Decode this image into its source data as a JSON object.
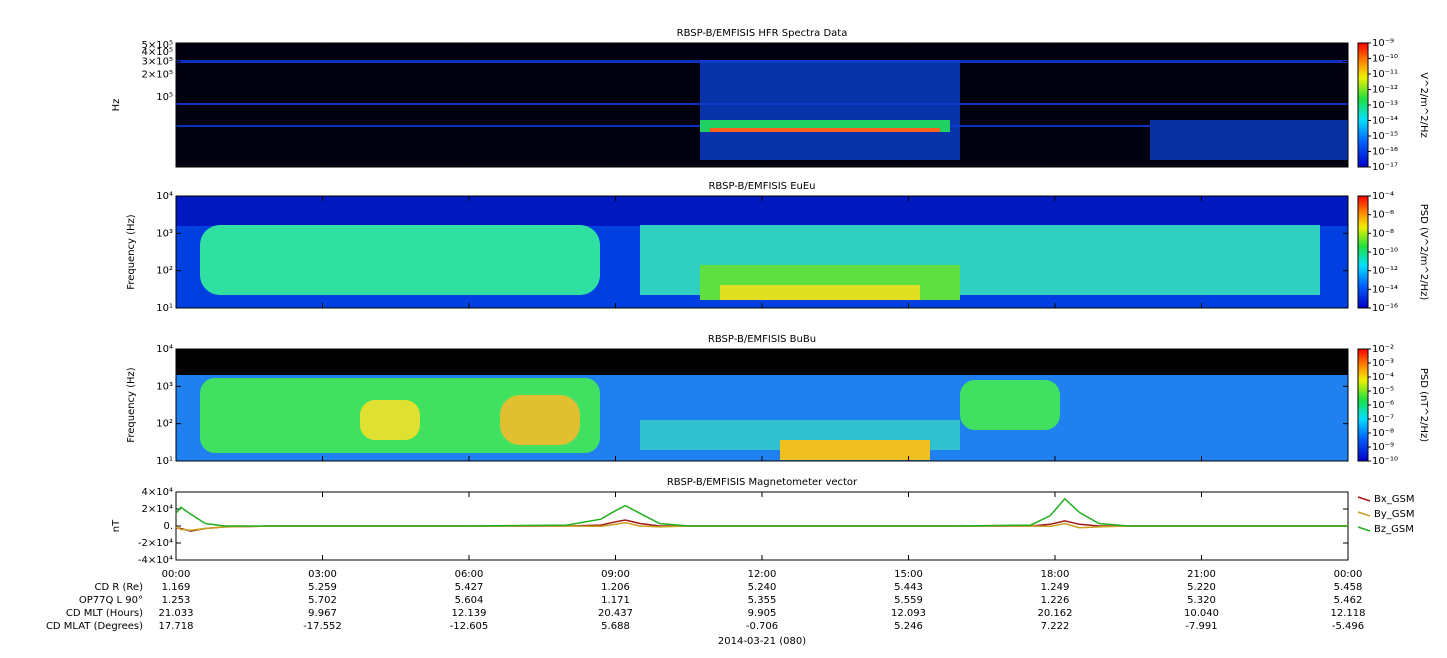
{
  "chart_data": [
    {
      "type": "spectrogram",
      "title": "RBSP-B/EMFISIS  HFR Spectra Data",
      "y_label": "Hz",
      "log_y": true,
      "ylim": [
        11500,
        530000
      ],
      "yticks": [
        {
          "value": 500000,
          "label": "5×10⁵"
        },
        {
          "value": 400000,
          "label": "4×10⁵"
        },
        {
          "value": 300000,
          "label": "3×10⁵"
        },
        {
          "value": 200000,
          "label": "2×10⁵"
        },
        {
          "value": 100000,
          "label": "10⁵"
        }
      ],
      "colorbar": {
        "label": "V^2/m^2/Hz",
        "clim": [
          -17,
          -9
        ],
        "ticks": [
          {
            "value": -9,
            "label": "10⁻⁹"
          },
          {
            "value": -10,
            "label": "10⁻¹⁰"
          },
          {
            "value": -11,
            "label": "10⁻¹¹"
          },
          {
            "value": -12,
            "label": "10⁻¹²"
          },
          {
            "value": -13,
            "label": "10⁻¹³"
          },
          {
            "value": -14,
            "label": "10⁻¹⁴"
          },
          {
            "value": -15,
            "label": "10⁻¹⁵"
          },
          {
            "value": -16,
            "label": "10⁻¹⁶"
          },
          {
            "value": -17,
            "label": "10⁻¹⁷"
          }
        ]
      }
    },
    {
      "type": "spectrogram",
      "title": "RBSP-B/EMFISIS  EuEu",
      "y_label": "Frequency (Hz)",
      "log_y": true,
      "ylim": [
        10,
        10000
      ],
      "yticks": [
        {
          "value": 10000,
          "label": "10⁴"
        },
        {
          "value": 1000,
          "label": "10³"
        },
        {
          "value": 100,
          "label": "10²"
        },
        {
          "value": 10,
          "label": "10¹"
        }
      ],
      "colorbar": {
        "label": "PSD (V^2/m^2/Hz)",
        "clim": [
          -16,
          -4
        ],
        "ticks": [
          {
            "value": -4,
            "label": "10⁻⁴"
          },
          {
            "value": -6,
            "label": "10⁻⁶"
          },
          {
            "value": -8,
            "label": "10⁻⁸"
          },
          {
            "value": -10,
            "label": "10⁻¹⁰"
          },
          {
            "value": -12,
            "label": "10⁻¹²"
          },
          {
            "value": -14,
            "label": "10⁻¹⁴"
          },
          {
            "value": -16,
            "label": "10⁻¹⁶"
          }
        ]
      }
    },
    {
      "type": "spectrogram",
      "title": "RBSP-B/EMFISIS  BuBu",
      "y_label": "Frequency (Hz)",
      "log_y": true,
      "ylim": [
        10,
        10000
      ],
      "yticks": [
        {
          "value": 10000,
          "label": "10⁴"
        },
        {
          "value": 1000,
          "label": "10³"
        },
        {
          "value": 100,
          "label": "10²"
        },
        {
          "value": 10,
          "label": "10¹"
        }
      ],
      "colorbar": {
        "label": "PSD (nT^2/Hz)",
        "clim": [
          -10,
          -2
        ],
        "ticks": [
          {
            "value": -2,
            "label": "10⁻²"
          },
          {
            "value": -3,
            "label": "10⁻³"
          },
          {
            "value": -4,
            "label": "10⁻⁴"
          },
          {
            "value": -5,
            "label": "10⁻⁵"
          },
          {
            "value": -6,
            "label": "10⁻⁶"
          },
          {
            "value": -7,
            "label": "10⁻⁷"
          },
          {
            "value": -8,
            "label": "10⁻⁸"
          },
          {
            "value": -9,
            "label": "10⁻⁹"
          },
          {
            "value": -10,
            "label": "10⁻¹⁰"
          }
        ]
      }
    },
    {
      "type": "line",
      "title": "RBSP-B/EMFISIS  Magnetometer vector",
      "y_label": "nT",
      "ylim": [
        -40000,
        40000
      ],
      "yticks": [
        {
          "value": 40000,
          "label": "4×10⁴"
        },
        {
          "value": 20000,
          "label": "2×10⁴"
        },
        {
          "value": 0,
          "label": "0."
        },
        {
          "value": -20000,
          "label": "-2×10⁴"
        },
        {
          "value": -40000,
          "label": "-4×10⁴"
        }
      ],
      "xlim": [
        0,
        24
      ],
      "xticks": [
        {
          "value": 0,
          "label": "00:00"
        },
        {
          "value": 3,
          "label": "03:00"
        },
        {
          "value": 6,
          "label": "06:00"
        },
        {
          "value": 9,
          "label": "09:00"
        },
        {
          "value": 12,
          "label": "12:00"
        },
        {
          "value": 15,
          "label": "15:00"
        },
        {
          "value": 18,
          "label": "18:00"
        },
        {
          "value": 21,
          "label": "21:00"
        },
        {
          "value": 24,
          "label": "00:00"
        }
      ],
      "x_label": "2014-03-21 (080)",
      "x": [
        0,
        0.1,
        0.3,
        0.6,
        1,
        2,
        4,
        6,
        8,
        8.7,
        9.0,
        9.2,
        9.5,
        9.9,
        10.5,
        12,
        14,
        16,
        17.5,
        17.9,
        18.2,
        18.5,
        18.9,
        19.5,
        21,
        24
      ],
      "series": [
        {
          "name": "Bx_GSM",
          "color": "#a01818",
          "values": [
            -2000,
            -3000,
            -6000,
            -3000,
            -1000,
            0,
            0,
            0,
            0,
            1000,
            5000,
            7000,
            3000,
            0,
            0,
            0,
            0,
            0,
            0,
            2000,
            6000,
            2000,
            0,
            0,
            0,
            0
          ]
        },
        {
          "name": "By_GSM",
          "color": "#c8a020",
          "values": [
            -1000,
            -4000,
            -5000,
            -3000,
            -1000,
            0,
            0,
            0,
            0,
            -500,
            2000,
            4000,
            0,
            -1000,
            0,
            0,
            0,
            0,
            0,
            -500,
            3000,
            -2000,
            -1000,
            0,
            0,
            0
          ]
        },
        {
          "name": "Bz_GSM",
          "color": "#20b020",
          "values": [
            15000,
            22000,
            14000,
            3000,
            0,
            0,
            0,
            0,
            1000,
            8000,
            18000,
            24000,
            15000,
            3000,
            0,
            0,
            0,
            0,
            1000,
            12000,
            32000,
            16000,
            3000,
            0,
            0,
            0
          ]
        }
      ]
    }
  ],
  "ephemeris": [
    {
      "label": "CD R (Re)",
      "values": [
        "1.169",
        "5.259",
        "5.427",
        "1.206",
        "5.240",
        "5.443",
        "1.249",
        "5.220",
        "5.458"
      ]
    },
    {
      "label": "OP77Q L 90°",
      "values": [
        "1.253",
        "5.702",
        "5.604",
        "1.171",
        "5.355",
        "5.559",
        "1.226",
        "5.320",
        "5.462"
      ]
    },
    {
      "label": "CD MLT (Hours)",
      "values": [
        "21.033",
        "9.967",
        "12.139",
        "20.437",
        "9.905",
        "12.093",
        "20.162",
        "10.040",
        "12.118"
      ]
    },
    {
      "label": "CD MLAT (Degrees)",
      "values": [
        "17.718",
        "-17.552",
        "-12.605",
        "5.688",
        "-0.706",
        "5.246",
        "7.222",
        "-7.991",
        "-5.496"
      ]
    }
  ]
}
